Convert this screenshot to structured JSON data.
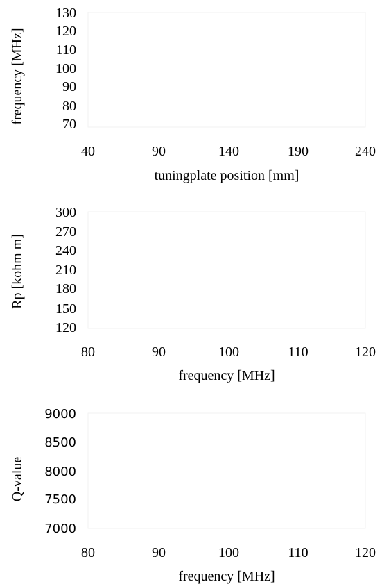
{
  "chart_data": [
    {
      "type": "scatter",
      "xlabel": "tuningplate position [mm]",
      "ylabel": "frequency [MHz]",
      "xlim": [
        40,
        240
      ],
      "ylim": [
        70,
        130
      ],
      "xticks": [
        "40",
        "90",
        "140",
        "190",
        "240"
      ],
      "yticks": [
        "130",
        "120",
        "110",
        "100",
        "90",
        "80",
        "70"
      ],
      "series": []
    },
    {
      "type": "scatter",
      "xlabel": "frequency [MHz]",
      "ylabel": "Rp [kohm m]",
      "xlim": [
        80,
        120
      ],
      "ylim": [
        120,
        300
      ],
      "xticks": [
        "80",
        "90",
        "100",
        "110",
        "120"
      ],
      "yticks": [
        "300",
        "270",
        "240",
        "210",
        "180",
        "150",
        "120"
      ],
      "series": []
    },
    {
      "type": "scatter",
      "xlabel": "frequency [MHz]",
      "ylabel": "Q-value",
      "xlim": [
        80,
        120
      ],
      "ylim": [
        7000,
        9000
      ],
      "xticks": [
        "80",
        "90",
        "100",
        "110",
        "120"
      ],
      "yticks": [
        "9000",
        "8500",
        "8000",
        "7500",
        "7000"
      ],
      "series": []
    }
  ]
}
